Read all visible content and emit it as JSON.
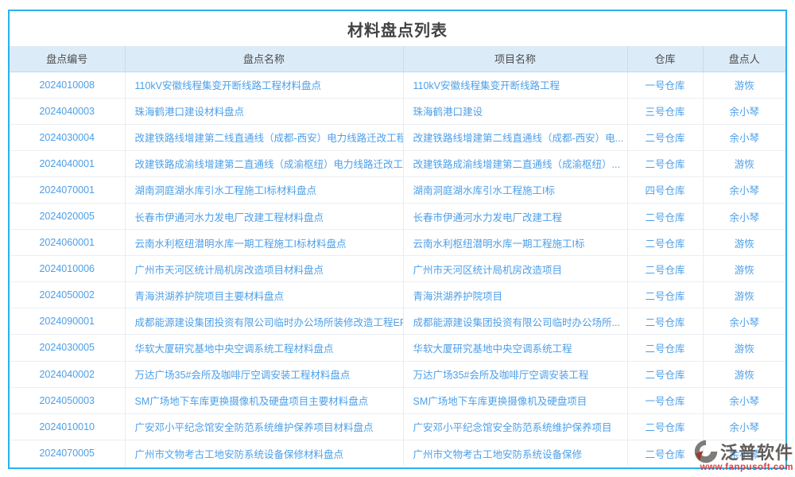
{
  "page": {
    "title": "材料盘点列表"
  },
  "table": {
    "columns": [
      {
        "key": "code",
        "label": "盘点编号"
      },
      {
        "key": "name",
        "label": "盘点名称"
      },
      {
        "key": "project",
        "label": "项目名称"
      },
      {
        "key": "warehouse",
        "label": "仓库"
      },
      {
        "key": "person",
        "label": "盘点人"
      }
    ],
    "rows": [
      {
        "code": "2024010008",
        "name": "110kV安徽线程集变开断线路工程材料盘点",
        "project": "110kV安徽线程集变开断线路工程",
        "warehouse": "一号仓库",
        "person": "游恢"
      },
      {
        "code": "2024040003",
        "name": "珠海鹤港口建设材料盘点",
        "project": "珠海鹤港口建设",
        "warehouse": "三号仓库",
        "person": "余小琴"
      },
      {
        "code": "2024030004",
        "name": "改建铁路线增建第二线直通线（成都-西安）电力线路迁改工程...",
        "project": "改建铁路线增建第二线直通线（成都-西安）电...",
        "warehouse": "二号仓库",
        "person": "余小琴"
      },
      {
        "code": "2024040001",
        "name": "改建铁路成渝线增建第二直通线（成渝枢纽）电力线路迁改工程...",
        "project": "改建铁路成渝线增建第二直通线（成渝枢纽）...",
        "warehouse": "二号仓库",
        "person": "游恢"
      },
      {
        "code": "2024070001",
        "name": "湖南洞庭湖水库引水工程施工I标材料盘点",
        "project": "湖南洞庭湖水库引水工程施工I标",
        "warehouse": "四号仓库",
        "person": "余小琴"
      },
      {
        "code": "2024020005",
        "name": "长春市伊通河水力发电厂改建工程材料盘点",
        "project": "长春市伊通河水力发电厂改建工程",
        "warehouse": "二号仓库",
        "person": "余小琴"
      },
      {
        "code": "2024060001",
        "name": "云南水利枢纽潜明水库一期工程施工I标材料盘点",
        "project": "云南水利枢纽潜明水库一期工程施工I标",
        "warehouse": "二号仓库",
        "person": "游恢"
      },
      {
        "code": "2024010006",
        "name": "广州市天河区统计局机房改造项目材料盘点",
        "project": "广州市天河区统计局机房改造项目",
        "warehouse": "二号仓库",
        "person": "游恢"
      },
      {
        "code": "2024050002",
        "name": "青海洪湖养护院项目主要材料盘点",
        "project": "青海洪湖养护院项目",
        "warehouse": "二号仓库",
        "person": "游恢"
      },
      {
        "code": "2024090001",
        "name": "成都能源建设集团投资有限公司临时办公场所装修改造工程EPC...",
        "project": "成都能源建设集团投资有限公司临时办公场所...",
        "warehouse": "二号仓库",
        "person": "余小琴"
      },
      {
        "code": "2024030005",
        "name": "华软大厦研究基地中央空调系统工程材料盘点",
        "project": "华软大厦研究基地中央空调系统工程",
        "warehouse": "二号仓库",
        "person": "游恢"
      },
      {
        "code": "2024040002",
        "name": "万达广场35#会所及咖啡厅空调安装工程材料盘点",
        "project": "万达广场35#会所及咖啡厅空调安装工程",
        "warehouse": "二号仓库",
        "person": "游恢"
      },
      {
        "code": "2024050003",
        "name": "SM广场地下车库更换摄像机及硬盘项目主要材料盘点",
        "project": "SM广场地下车库更换摄像机及硬盘项目",
        "warehouse": "一号仓库",
        "person": "余小琴"
      },
      {
        "code": "2024010010",
        "name": "广安邓小平纪念馆安全防范系统维护保养项目材料盘点",
        "project": "广安邓小平纪念馆安全防范系统维护保养项目",
        "warehouse": "二号仓库",
        "person": "余小琴"
      },
      {
        "code": "2024070005",
        "name": "广州市文物考古工地安防系统设备保修材料盘点",
        "project": "广州市文物考古工地安防系统设备保修",
        "warehouse": "二号仓库",
        "person": "余小琴"
      }
    ]
  },
  "watermark": {
    "brand": "泛普软件",
    "url": "www.fanpusoft.com"
  },
  "colors": {
    "panel_border": "#29b1ef",
    "header_bg": "#dcebf8",
    "link_text": "#4d9fe8",
    "title_text": "#434343",
    "watermark_brand": "#56514e",
    "watermark_url": "#d93434",
    "watermark_logo_gray": "#76726f",
    "watermark_logo_red": "#8d2e1f"
  }
}
